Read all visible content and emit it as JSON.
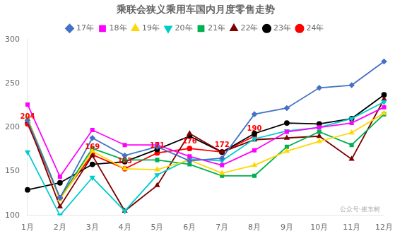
{
  "chart_data": {
    "type": "line",
    "title": "乘联会狭义乘用车国内月度零售走势",
    "categories": [
      "1月",
      "2月",
      "3月",
      "4月",
      "5月",
      "6月",
      "7月",
      "8月",
      "9月",
      "10月",
      "11月",
      "12月"
    ],
    "series": [
      {
        "name": "17年",
        "color": "#4472C4",
        "marker": "diamond",
        "values": [
          208,
          120,
          188,
          168,
          178,
          162,
          165,
          215,
          222,
          245,
          248,
          275
        ]
      },
      {
        "name": "18年",
        "color": "#FF00FF",
        "marker": "square",
        "values": [
          226,
          144,
          197,
          180,
          180,
          167,
          157,
          174,
          195,
          200,
          205,
          223
        ]
      },
      {
        "name": "19年",
        "color": "#FFD700",
        "marker": "triangle",
        "values": [
          210,
          118,
          173,
          153,
          152,
          163,
          148,
          157,
          173,
          184,
          194,
          216
        ]
      },
      {
        "name": "20年",
        "color": "#00CCCC",
        "marker": "triangle_down",
        "values": [
          172,
          100,
          143,
          105,
          146,
          164,
          162,
          187,
          196,
          200,
          210,
          229
        ]
      },
      {
        "name": "21年",
        "color": "#00B050",
        "marker": "square",
        "values": [
          210,
          120,
          176,
          163,
          163,
          158,
          145,
          145,
          178,
          195,
          180,
          215
        ]
      },
      {
        "name": "22年",
        "color": "#7B0000",
        "marker": "triangle",
        "values": [
          207,
          110,
          168,
          105,
          134,
          193,
          172,
          186,
          188,
          190,
          164,
          232
        ]
      },
      {
        "name": "23年",
        "color": "#000000",
        "marker": "circle",
        "values": [
          129,
          137,
          158,
          161,
          175,
          190,
          172,
          193,
          205,
          204,
          210,
          237
        ]
      },
      {
        "name": "24年",
        "color": "#FF0000",
        "marker": "circle",
        "values": [
          204,
          120,
          169,
          153,
          171,
          176,
          172,
          190,
          null,
          null,
          null,
          null
        ]
      }
    ],
    "annotations": [
      {
        "x": "1月",
        "y": 204,
        "text": "204",
        "color": "#FF0000"
      },
      {
        "x": "3月",
        "y": 169,
        "text": "169",
        "color": "#FF0000"
      },
      {
        "x": "4月",
        "y": 153,
        "text": "153",
        "color": "#FF0000"
      },
      {
        "x": "5月",
        "y": 171,
        "text": "171",
        "color": "#FF0000"
      },
      {
        "x": "6月",
        "y": 176,
        "text": "176",
        "color": "#FF0000"
      },
      {
        "x": "7月",
        "y": 172,
        "text": "172",
        "color": "#FF0000"
      },
      {
        "x": "8月",
        "y": 190,
        "text": "190",
        "color": "#FF0000"
      },
      {
        "text": "公众号·崔东树",
        "color": "#AAAAAA"
      }
    ],
    "ylim": [
      100,
      300
    ],
    "yticks": [
      100,
      150,
      200,
      250,
      300
    ],
    "grid": false,
    "legend": "top"
  }
}
